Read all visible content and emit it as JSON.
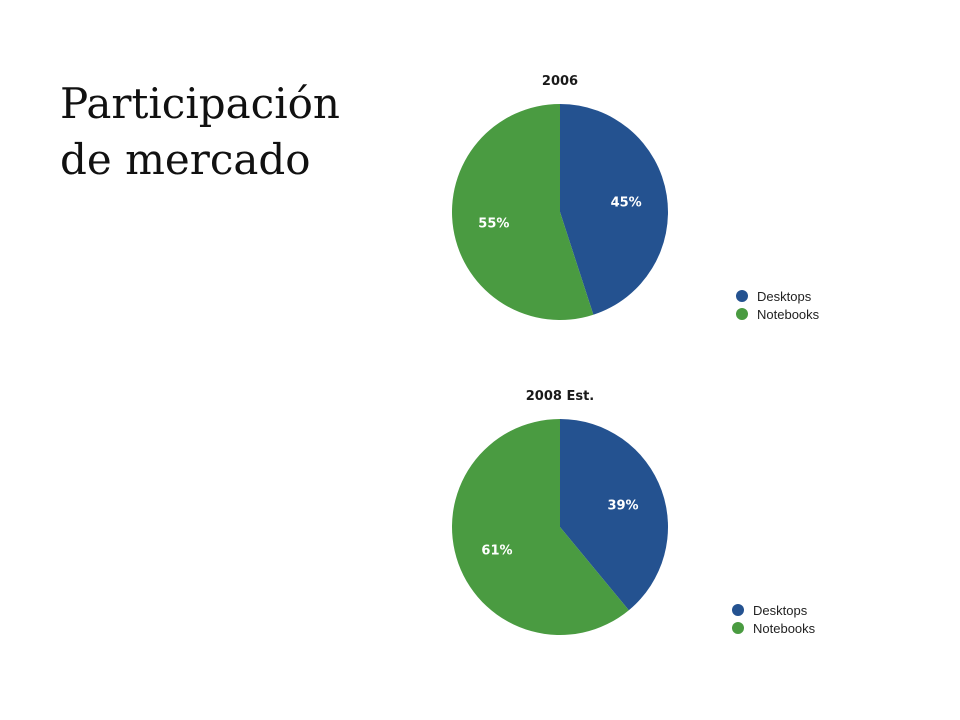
{
  "slide": {
    "title_line1": "Participación",
    "title_line2": "de mercado"
  },
  "chart_data": [
    {
      "type": "pie",
      "title": "2006",
      "categories": [
        "Desktops",
        "Notebooks"
      ],
      "values": [
        45,
        55
      ],
      "labels": [
        "45%",
        "55%"
      ],
      "colors": [
        "#245290",
        "#4a9b41"
      ],
      "legend": "right-bottom"
    },
    {
      "type": "pie",
      "title": "2008 Est.",
      "categories": [
        "Desktops",
        "Notebooks"
      ],
      "values": [
        39,
        61
      ],
      "labels": [
        "39%",
        "61%"
      ],
      "colors": [
        "#245290",
        "#4a9b41"
      ],
      "legend": "right-bottom"
    }
  ]
}
